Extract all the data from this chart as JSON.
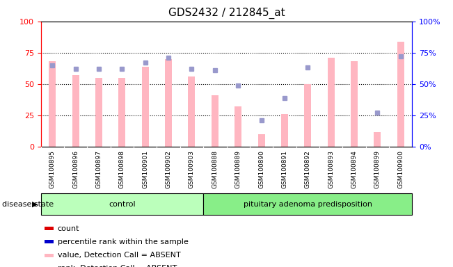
{
  "title": "GDS2432 / 212845_at",
  "samples": [
    "GSM100895",
    "GSM100896",
    "GSM100897",
    "GSM100898",
    "GSM100901",
    "GSM100902",
    "GSM100903",
    "GSM100888",
    "GSM100889",
    "GSM100890",
    "GSM100891",
    "GSM100892",
    "GSM100893",
    "GSM100894",
    "GSM100899",
    "GSM100900"
  ],
  "bar_values": [
    68,
    57,
    55,
    55,
    64,
    70,
    56,
    41,
    32,
    10,
    26,
    50,
    71,
    68,
    12,
    84
  ],
  "dot_values": [
    65,
    62,
    62,
    62,
    67,
    71,
    62,
    61,
    49,
    21,
    39,
    63,
    null,
    null,
    27,
    72
  ],
  "group_labels": [
    "control",
    "pituitary adenoma predisposition"
  ],
  "group_sizes": [
    7,
    9
  ],
  "ylim": [
    0,
    100
  ],
  "yticks": [
    0,
    25,
    50,
    75,
    100
  ],
  "bar_color": "#FFB6C1",
  "dot_color": "#9999CC",
  "legend_items": [
    {
      "label": "count",
      "color": "#DD0000"
    },
    {
      "label": "percentile rank within the sample",
      "color": "#0000CC"
    },
    {
      "label": "value, Detection Call = ABSENT",
      "color": "#FFB6C1"
    },
    {
      "label": "rank, Detection Call = ABSENT",
      "color": "#AAAADD"
    }
  ],
  "group_color_control": "#BBFFBB",
  "group_color_pituitary": "#88EE88",
  "disease_state_label": "disease state",
  "xtick_bg_color": "#CCCCCC",
  "plot_bg_color": "#FFFFFF"
}
